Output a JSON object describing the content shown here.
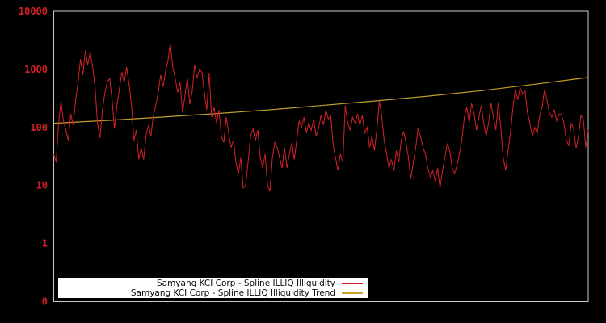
{
  "window": {
    "background": "#000000",
    "frame_color": "#c8c8c8"
  },
  "chart_data": {
    "type": "line",
    "title": "",
    "xlabel": "",
    "ylabel": "",
    "grid": false,
    "legend_position": "bottom-center-overlay",
    "x_axis": {
      "tick_labels": []
    },
    "y_axis": {
      "scale": "log10",
      "range": [
        0.1,
        10000
      ],
      "tick_labels": [
        "10000",
        "1000",
        "100",
        "10",
        "1",
        "0"
      ],
      "tick_values": [
        10000,
        1000,
        100,
        10,
        1,
        0.1
      ],
      "label_color": "#d42127"
    },
    "series": [
      {
        "name": "Samyang KCI Corp - Spline ILLIQ Illiquidity",
        "color": "#d42127",
        "values": [
          35,
          25,
          115,
          280,
          130,
          90,
          60,
          170,
          110,
          300,
          600,
          1500,
          800,
          2100,
          1200,
          2000,
          1100,
          500,
          120,
          66,
          190,
          380,
          600,
          700,
          300,
          95,
          240,
          450,
          900,
          600,
          1100,
          550,
          250,
          60,
          90,
          28,
          45,
          28,
          75,
          110,
          70,
          160,
          240,
          400,
          800,
          500,
          900,
          1400,
          2800,
          1100,
          700,
          400,
          600,
          180,
          350,
          700,
          250,
          420,
          1200,
          700,
          1000,
          900,
          400,
          200,
          850,
          150,
          220,
          120,
          200,
          70,
          55,
          150,
          80,
          45,
          60,
          25,
          16,
          30,
          9,
          10,
          25,
          70,
          95,
          60,
          90,
          30,
          20,
          35,
          10,
          8,
          30,
          55,
          45,
          30,
          20,
          45,
          20,
          35,
          55,
          28,
          60,
          130,
          100,
          150,
          80,
          120,
          90,
          140,
          70,
          95,
          160,
          110,
          200,
          140,
          160,
          50,
          30,
          18,
          35,
          25,
          240,
          120,
          90,
          150,
          120,
          170,
          110,
          160,
          80,
          100,
          45,
          70,
          40,
          90,
          280,
          160,
          60,
          35,
          20,
          28,
          18,
          40,
          25,
          60,
          85,
          55,
          30,
          13,
          25,
          45,
          97,
          70,
          45,
          35,
          20,
          14,
          18,
          12,
          20,
          9,
          18,
          30,
          53,
          40,
          20,
          16,
          22,
          35,
          60,
          150,
          225,
          120,
          260,
          170,
          90,
          150,
          240,
          120,
          70,
          120,
          260,
          150,
          90,
          270,
          100,
          30,
          18,
          40,
          80,
          220,
          450,
          300,
          480,
          380,
          420,
          180,
          120,
          70,
          100,
          80,
          160,
          220,
          450,
          300,
          180,
          150,
          200,
          130,
          170,
          166,
          120,
          60,
          49,
          117,
          95,
          44,
          70,
          160,
          138,
          45,
          90
        ]
      },
      {
        "name": "Samyang KCI Corp - Spline ILLIQ Illiquidity Trend",
        "color": "#c3a02c",
        "values": [
          118,
          132,
          150,
          172,
          200,
          238,
          285,
          345,
          430,
          555,
          725
        ]
      }
    ]
  },
  "legend": {
    "background": "#ffffff",
    "text_color": "#0a0a0a"
  }
}
